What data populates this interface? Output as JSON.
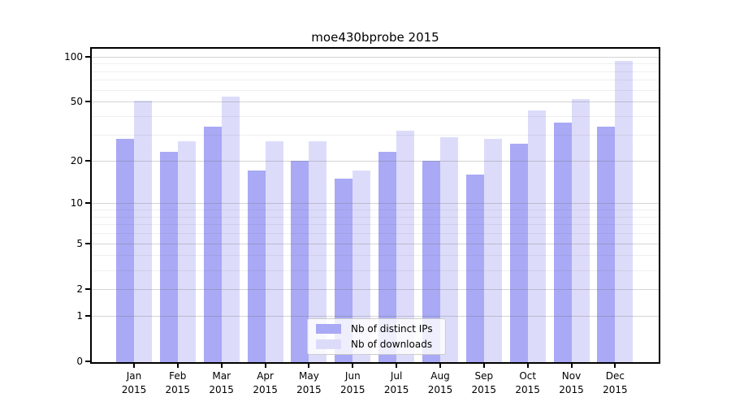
{
  "title": "moe430bprobe 2015",
  "legend": {
    "items": [
      {
        "label": "Nb of distinct IPs",
        "color": "#a9a9f5"
      },
      {
        "label": "Nb of downloads",
        "color": "#dcdcfa"
      }
    ]
  },
  "y_axis": {
    "tick_labels": [
      "100",
      "50",
      "20",
      "10",
      "5",
      "2",
      "1",
      "0"
    ],
    "tick_values": [
      100,
      50,
      20,
      10,
      5,
      2,
      1,
      0
    ]
  },
  "x_axis": {
    "year": "2015",
    "months": [
      "Jan",
      "Feb",
      "Mar",
      "Apr",
      "May",
      "Jun",
      "Jul",
      "Aug",
      "Sep",
      "Oct",
      "Nov",
      "Dec"
    ]
  },
  "chart_data": {
    "type": "bar",
    "title": "moe430bprobe 2015",
    "categories": [
      "Jan 2015",
      "Feb 2015",
      "Mar 2015",
      "Apr 2015",
      "May 2015",
      "Jun 2015",
      "Jul 2015",
      "Aug 2015",
      "Sep 2015",
      "Oct 2015",
      "Nov 2015",
      "Dec 2015"
    ],
    "series": [
      {
        "name": "Nb of distinct IPs",
        "color": "#a9a9f5",
        "values": [
          28,
          23,
          34,
          17,
          20,
          15,
          23,
          20,
          16,
          26,
          36,
          34
        ]
      },
      {
        "name": "Nb of downloads",
        "color": "#dcdcfa",
        "values": [
          51,
          27,
          54,
          27,
          27,
          17,
          32,
          29,
          28,
          44,
          52,
          94
        ]
      }
    ],
    "xlabel": "",
    "ylabel": "",
    "yscale": "log1p",
    "yticks_major": [
      0,
      1,
      2,
      5,
      10,
      20,
      50,
      100
    ],
    "yticks_minor": [
      3,
      4,
      6,
      7,
      8,
      9,
      30,
      40,
      60,
      70,
      80,
      90
    ],
    "ylim": [
      0,
      115
    ],
    "grid": true,
    "legend_position": "lower center"
  }
}
